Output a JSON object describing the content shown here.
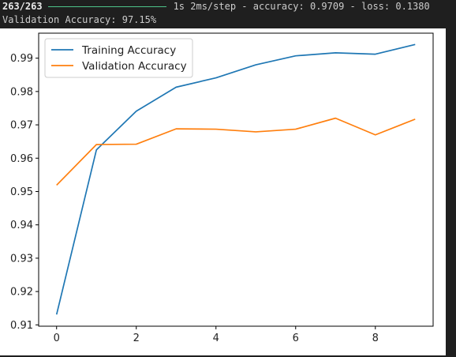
{
  "console": {
    "progress_counter": "263/263",
    "progress_tail": "1s 2ms/step - accuracy: 0.9709 - loss: 0.1380",
    "validation_line": "Validation Accuracy: 97.15%"
  },
  "colors": {
    "training": "#1f77b4",
    "validation": "#ff7f0e",
    "progress_bar": "#4ec38a",
    "background": "#1f1f1f"
  },
  "chart_data": {
    "type": "line",
    "title": "",
    "xlabel": "",
    "ylabel": "",
    "x": [
      0,
      1,
      2,
      3,
      4,
      5,
      6,
      7,
      8,
      9
    ],
    "xlim": [
      -0.45,
      9.45
    ],
    "ylim": [
      0.9096,
      0.9975
    ],
    "xticks": [
      0,
      2,
      4,
      6,
      8
    ],
    "yticks": [
      0.91,
      0.92,
      0.93,
      0.94,
      0.95,
      0.96,
      0.97,
      0.98,
      0.99
    ],
    "xtick_labels": [
      "0",
      "2",
      "4",
      "6",
      "8"
    ],
    "ytick_labels": [
      "0.91",
      "0.92",
      "0.93",
      "0.94",
      "0.95",
      "0.96",
      "0.97",
      "0.98",
      "0.99"
    ],
    "grid": false,
    "legend_position": "top-left",
    "series": [
      {
        "name": "Training Accuracy",
        "color": "#1f77b4",
        "values": [
          0.9131,
          0.9625,
          0.9741,
          0.9813,
          0.9841,
          0.988,
          0.9907,
          0.9916,
          0.9912,
          0.9941
        ]
      },
      {
        "name": "Validation Accuracy",
        "color": "#ff7f0e",
        "values": [
          0.9519,
          0.9641,
          0.9642,
          0.9688,
          0.9687,
          0.9679,
          0.9687,
          0.972,
          0.967,
          0.9717
        ]
      }
    ]
  }
}
